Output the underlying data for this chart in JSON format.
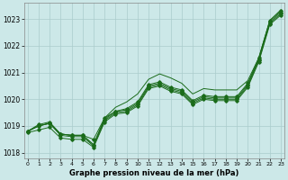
{
  "title": "Graphe pression niveau de la mer (hPa)",
  "bg_color": "#cce8e8",
  "grid_color": "#aacccc",
  "line_color": "#1a6b1a",
  "ylim": [
    1017.8,
    1023.6
  ],
  "xlim": [
    -0.3,
    23.3
  ],
  "yticks": [
    1018,
    1019,
    1020,
    1021,
    1022,
    1023
  ],
  "xticks": [
    0,
    1,
    2,
    3,
    4,
    5,
    6,
    7,
    8,
    9,
    10,
    11,
    12,
    13,
    14,
    15,
    16,
    17,
    18,
    19,
    20,
    21,
    22,
    23
  ],
  "series": [
    [
      1018.8,
      1019.0,
      1019.1,
      1018.7,
      1018.65,
      1018.65,
      1018.3,
      1019.25,
      1019.55,
      1019.6,
      1019.85,
      1020.5,
      1020.6,
      1020.4,
      1020.3,
      1019.9,
      1020.1,
      1020.05,
      1020.05,
      1020.05,
      1020.55,
      1021.5,
      1022.9,
      1023.25
    ],
    [
      1018.8,
      1019.0,
      1019.1,
      1018.65,
      1018.6,
      1018.6,
      1018.25,
      1019.2,
      1019.5,
      1019.55,
      1019.8,
      1020.45,
      1020.55,
      1020.35,
      1020.25,
      1019.85,
      1020.05,
      1020.0,
      1020.0,
      1020.0,
      1020.5,
      1021.45,
      1022.85,
      1023.2
    ],
    [
      1018.8,
      1019.05,
      1019.15,
      1018.7,
      1018.65,
      1018.65,
      1018.5,
      1019.3,
      1019.55,
      1019.65,
      1019.9,
      1020.55,
      1020.65,
      1020.45,
      1020.35,
      1019.95,
      1020.15,
      1020.1,
      1020.1,
      1020.1,
      1020.6,
      1021.55,
      1022.95,
      1023.3
    ],
    [
      1018.75,
      1018.85,
      1018.95,
      1018.55,
      1018.5,
      1018.5,
      1018.2,
      1019.15,
      1019.45,
      1019.5,
      1019.75,
      1020.4,
      1020.5,
      1020.3,
      1020.2,
      1019.8,
      1020.0,
      1019.95,
      1019.95,
      1019.95,
      1020.45,
      1021.4,
      1022.8,
      1023.15
    ]
  ],
  "series_smooth": [
    1018.8,
    1019.0,
    1019.1,
    1018.7,
    1018.65,
    1018.65,
    1018.3,
    1019.3,
    1019.7,
    1019.9,
    1020.2,
    1020.75,
    1020.95,
    1020.8,
    1020.6,
    1020.2,
    1020.4,
    1020.35,
    1020.35,
    1020.35,
    1020.7,
    1021.55,
    1022.95,
    1023.35
  ]
}
